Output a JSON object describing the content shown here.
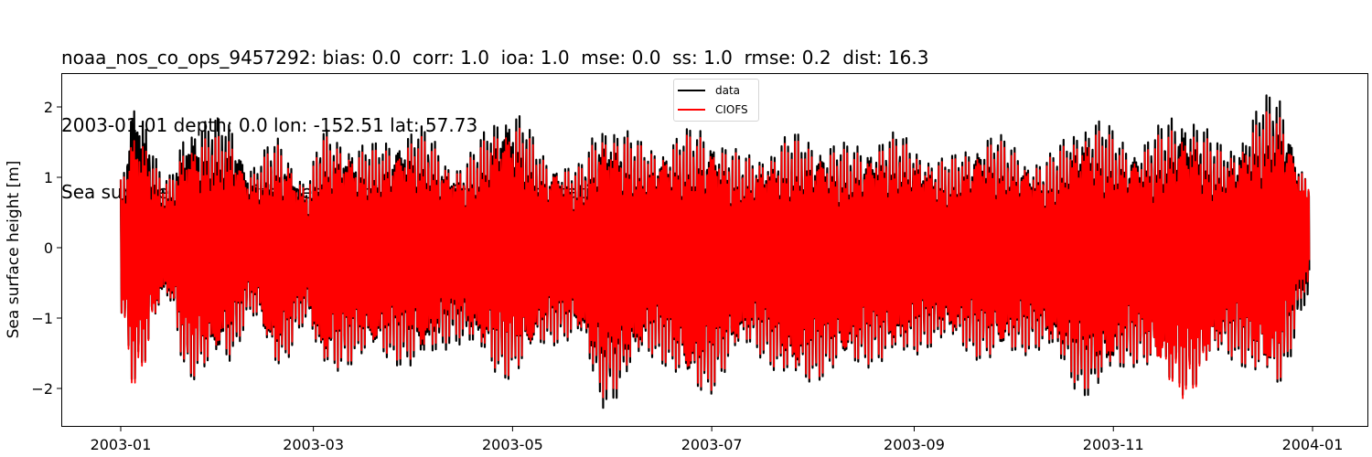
{
  "title": {
    "line1": "noaa_nos_co_ops_9457292: bias: 0.0  corr: 1.0  ioa: 1.0  mse: 0.0  ss: 1.0  rmse: 0.2  dist: 16.3",
    "line2": "2003-01-01 depth: 0.0 lon: -152.51 lat: 57.73",
    "line3": "Sea surface height with mean subtracted, from fixed station"
  },
  "legend": {
    "items": [
      {
        "label": "data",
        "color": "#000000"
      },
      {
        "label": "CIOFS",
        "color": "#ff0000"
      }
    ]
  },
  "chart_data": {
    "type": "line",
    "title": "noaa_nos_co_ops_9457292: bias: 0.0  corr: 1.0  ioa: 1.0  mse: 0.0  ss: 1.0  rmse: 0.2  dist: 16.3 / 2003-01-01 depth: 0.0 lon: -152.51 lat: 57.73 / Sea surface height with mean subtracted, from fixed station",
    "xlabel": "",
    "ylabel": "Sea surface height [m]",
    "ylim": [
      -2.55,
      2.45
    ],
    "xlim": [
      "2002-12-13",
      "2004-01-09"
    ],
    "xticks": [
      "2003-01",
      "2003-03",
      "2003-05",
      "2003-07",
      "2003-09",
      "2003-11",
      "2004-01"
    ],
    "yticks": [
      -2,
      -1,
      0,
      1,
      2
    ],
    "grid": false,
    "legend_position": "upper center",
    "series": [
      {
        "name": "data",
        "color": "#000000",
        "description": "Tidal oscillation; envelope (daily max / min) sampled roughly weekly",
        "envelope_days": [
          0,
          4,
          14,
          21,
          33,
          40,
          48,
          57,
          62,
          76,
          91,
          103,
          119,
          132,
          140,
          148,
          162,
          178,
          192,
          207,
          223,
          237,
          252,
          266,
          282,
          296,
          311,
          326,
          338,
          354,
          364
        ],
        "upper": [
          1.0,
          2.25,
          1.0,
          1.85,
          1.85,
          1.2,
          1.6,
          1.0,
          1.7,
          1.5,
          1.75,
          1.25,
          2.05,
          1.3,
          1.2,
          1.9,
          1.5,
          1.75,
          1.35,
          1.65,
          1.5,
          1.65,
          1.3,
          1.65,
          1.3,
          1.9,
          1.55,
          2.0,
          1.5,
          2.25,
          1.0
        ],
        "lower": [
          -1.0,
          -1.95,
          -0.8,
          -1.9,
          -1.7,
          -1.0,
          -1.8,
          -1.1,
          -1.85,
          -1.6,
          -1.75,
          -1.4,
          -1.9,
          -1.4,
          -1.35,
          -2.3,
          -1.6,
          -2.15,
          -1.5,
          -2.0,
          -1.75,
          -1.65,
          -1.4,
          -1.65,
          -1.5,
          -2.15,
          -1.7,
          -2.1,
          -1.6,
          -2.05,
          -0.8
        ]
      },
      {
        "name": "CIOFS",
        "color": "#ff0000",
        "description": "Model tidal oscillation; envelope slightly inside observed",
        "envelope_days": [
          0,
          4,
          14,
          21,
          33,
          40,
          48,
          57,
          62,
          76,
          91,
          103,
          119,
          132,
          140,
          148,
          162,
          178,
          192,
          207,
          223,
          237,
          252,
          266,
          282,
          296,
          311,
          326,
          338,
          354,
          364
        ],
        "upper": [
          1.0,
          1.8,
          0.95,
          1.6,
          1.6,
          1.1,
          1.5,
          0.95,
          1.6,
          1.4,
          1.6,
          1.2,
          1.85,
          1.25,
          1.15,
          1.75,
          1.45,
          1.65,
          1.3,
          1.55,
          1.4,
          1.55,
          1.25,
          1.55,
          1.25,
          1.75,
          1.45,
          1.8,
          1.4,
          2.0,
          1.0
        ],
        "lower": [
          -1.0,
          -2.0,
          -0.75,
          -1.85,
          -1.6,
          -0.95,
          -1.75,
          -1.05,
          -1.8,
          -1.55,
          -1.65,
          -1.3,
          -1.85,
          -1.35,
          -1.3,
          -2.15,
          -1.55,
          -2.1,
          -1.45,
          -1.95,
          -1.7,
          -1.6,
          -1.35,
          -1.6,
          -1.45,
          -2.05,
          -1.65,
          -2.15,
          -1.55,
          -2.0,
          -0.6
        ]
      }
    ]
  },
  "axes": {
    "ylabel": "Sea surface height [m]",
    "yticks": [
      {
        "label": "2",
        "value": 2
      },
      {
        "label": "1",
        "value": 1
      },
      {
        "label": "0",
        "value": 0
      },
      {
        "label": "−1",
        "value": -1
      },
      {
        "label": "−2",
        "value": -2
      }
    ],
    "xticks": [
      {
        "label": "2003-01",
        "day": 0
      },
      {
        "label": "2003-03",
        "day": 59
      },
      {
        "label": "2003-05",
        "day": 120
      },
      {
        "label": "2003-07",
        "day": 181
      },
      {
        "label": "2003-09",
        "day": 243
      },
      {
        "label": "2003-11",
        "day": 304
      },
      {
        "label": "2004-01",
        "day": 365
      }
    ]
  }
}
